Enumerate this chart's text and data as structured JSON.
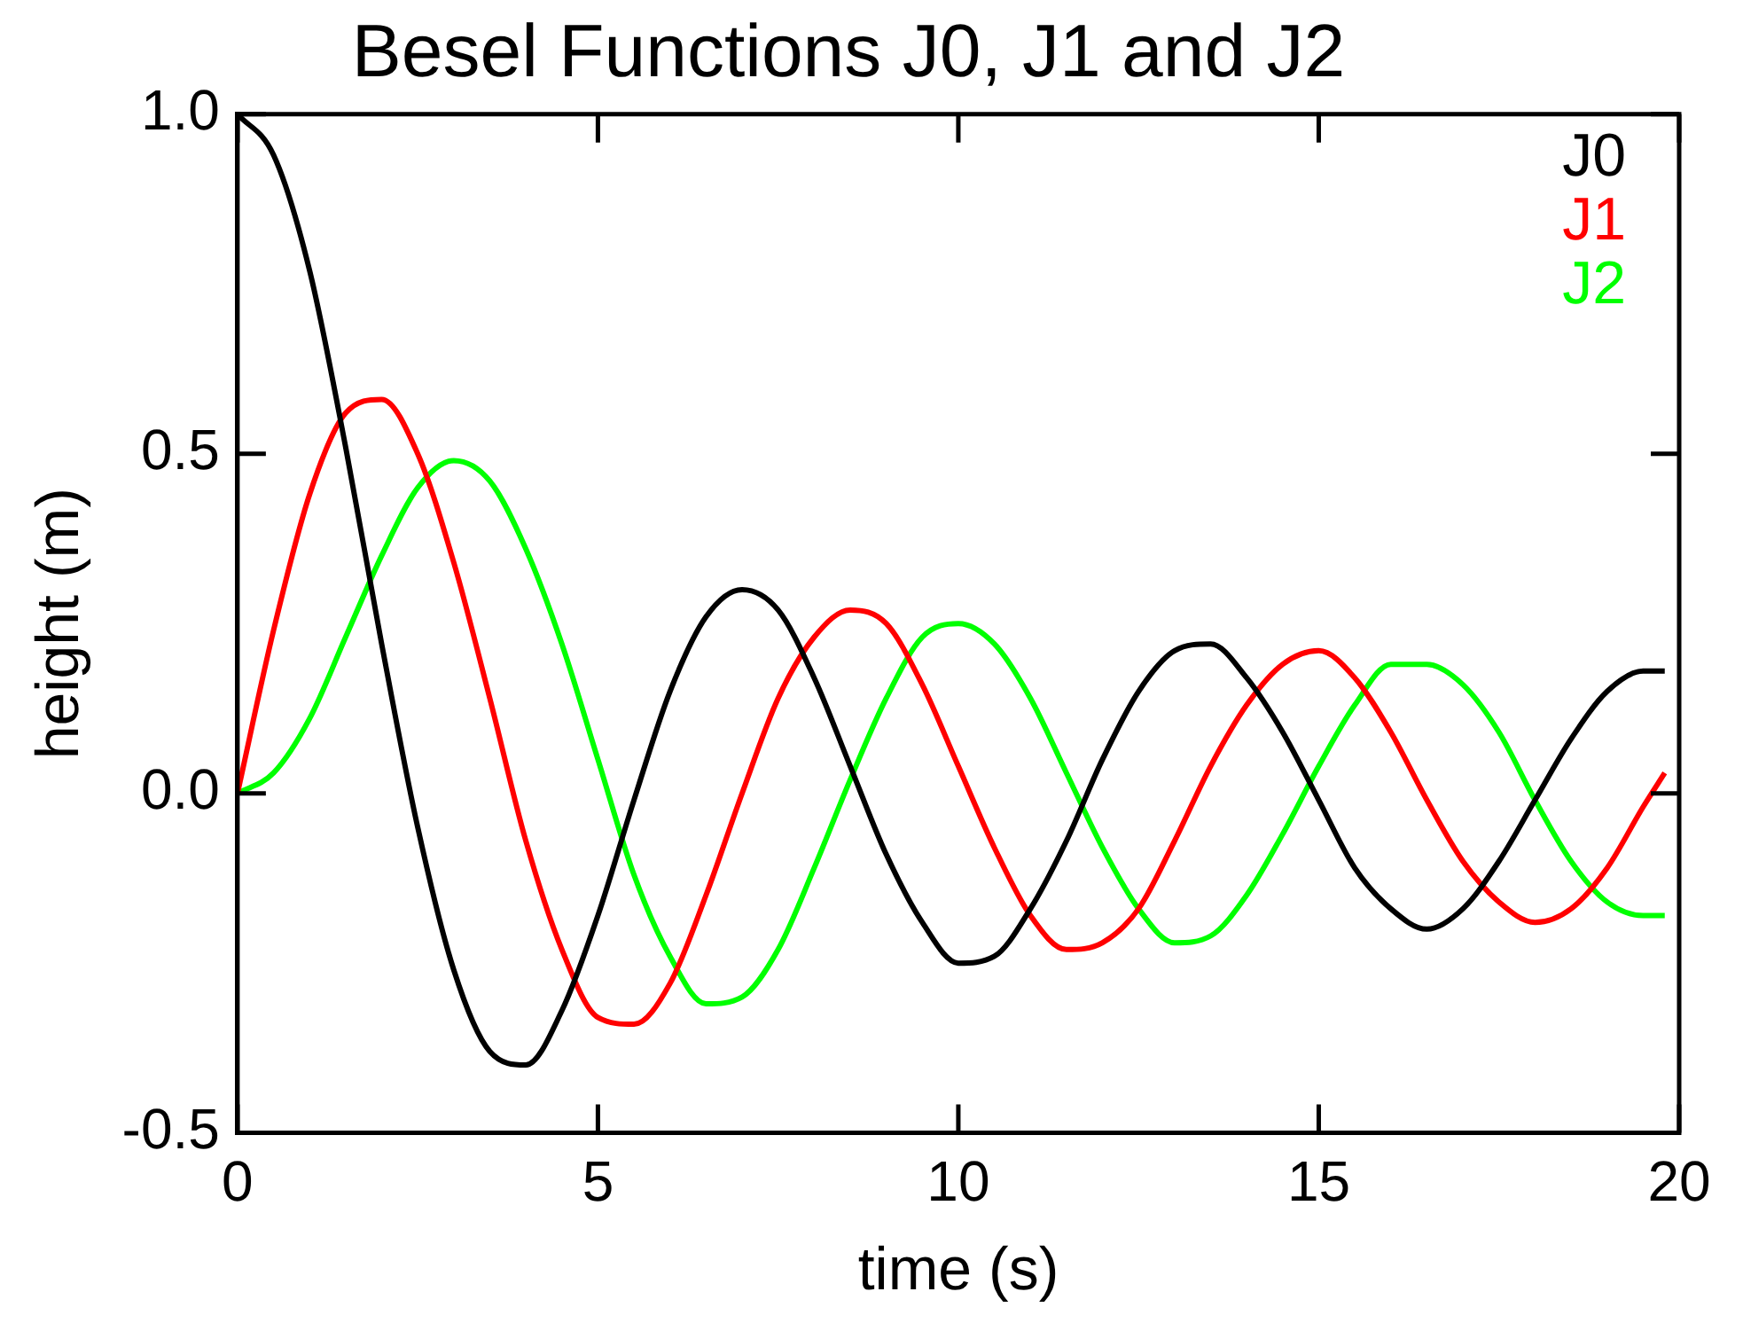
{
  "chart_data": {
    "type": "line",
    "title": "Besel Functions J0, J1 and J2",
    "xlabel": "time (s)",
    "ylabel": "height (m)",
    "x": [
      0,
      0.5,
      1,
      1.5,
      2,
      2.5,
      3,
      3.5,
      4,
      4.5,
      5,
      5.5,
      6,
      6.5,
      7,
      7.5,
      8,
      8.5,
      9,
      9.5,
      10,
      10.5,
      11,
      11.5,
      12,
      12.5,
      13,
      13.5,
      14,
      14.5,
      15,
      15.5,
      16,
      16.5,
      17,
      17.5,
      18,
      18.5,
      19,
      19.5,
      19.8
    ],
    "series": [
      {
        "name": "J0",
        "color": "#000000",
        "values": [
          1,
          0.94,
          0.77,
          0.51,
          0.22,
          -0.05,
          -0.26,
          -0.38,
          -0.4,
          -0.32,
          -0.18,
          -0.01,
          0.15,
          0.26,
          0.3,
          0.27,
          0.17,
          0.04,
          -0.09,
          -0.19,
          -0.25,
          -0.24,
          -0.17,
          -0.07,
          0.05,
          0.15,
          0.21,
          0.22,
          0.17,
          0.09,
          -0.01,
          -0.11,
          -0.17,
          -0.2,
          -0.17,
          -0.1,
          -0.01,
          0.08,
          0.15,
          0.18,
          0.18
        ]
      },
      {
        "name": "J1",
        "color": "#ff0000",
        "values": [
          0,
          0.24,
          0.44,
          0.56,
          0.58,
          0.5,
          0.34,
          0.14,
          -0.07,
          -0.23,
          -0.33,
          -0.34,
          -0.28,
          -0.15,
          0,
          0.14,
          0.23,
          0.27,
          0.25,
          0.16,
          0.04,
          -0.08,
          -0.18,
          -0.23,
          -0.22,
          -0.17,
          -0.07,
          0.04,
          0.13,
          0.19,
          0.21,
          0.17,
          0.09,
          -0.01,
          -0.1,
          -0.16,
          -0.19,
          -0.17,
          -0.11,
          -0.02,
          0.03
        ]
      },
      {
        "name": "J2",
        "color": "#00ff00",
        "values": [
          0,
          0.03,
          0.11,
          0.23,
          0.35,
          0.45,
          0.49,
          0.46,
          0.36,
          0.22,
          0.05,
          -0.12,
          -0.24,
          -0.31,
          -0.3,
          -0.23,
          -0.11,
          0.02,
          0.14,
          0.23,
          0.25,
          0.22,
          0.14,
          0.03,
          -0.08,
          -0.17,
          -0.22,
          -0.21,
          -0.15,
          -0.06,
          0.04,
          0.13,
          0.19,
          0.19,
          0.16,
          0.09,
          -0.01,
          -0.1,
          -0.16,
          -0.18,
          -0.18
        ]
      }
    ],
    "xlim": [
      0,
      20
    ],
    "xticks": [
      0,
      5,
      10,
      15,
      20
    ],
    "ylim": [
      -0.5,
      1
    ],
    "yticks": [
      -0.5,
      {
        "value": 0,
        "label": "0.0"
      },
      0.5,
      {
        "value": 1,
        "label": "1.0"
      }
    ],
    "grid": false,
    "legend": "top right",
    "marker": "none",
    "line_style": "solid"
  }
}
